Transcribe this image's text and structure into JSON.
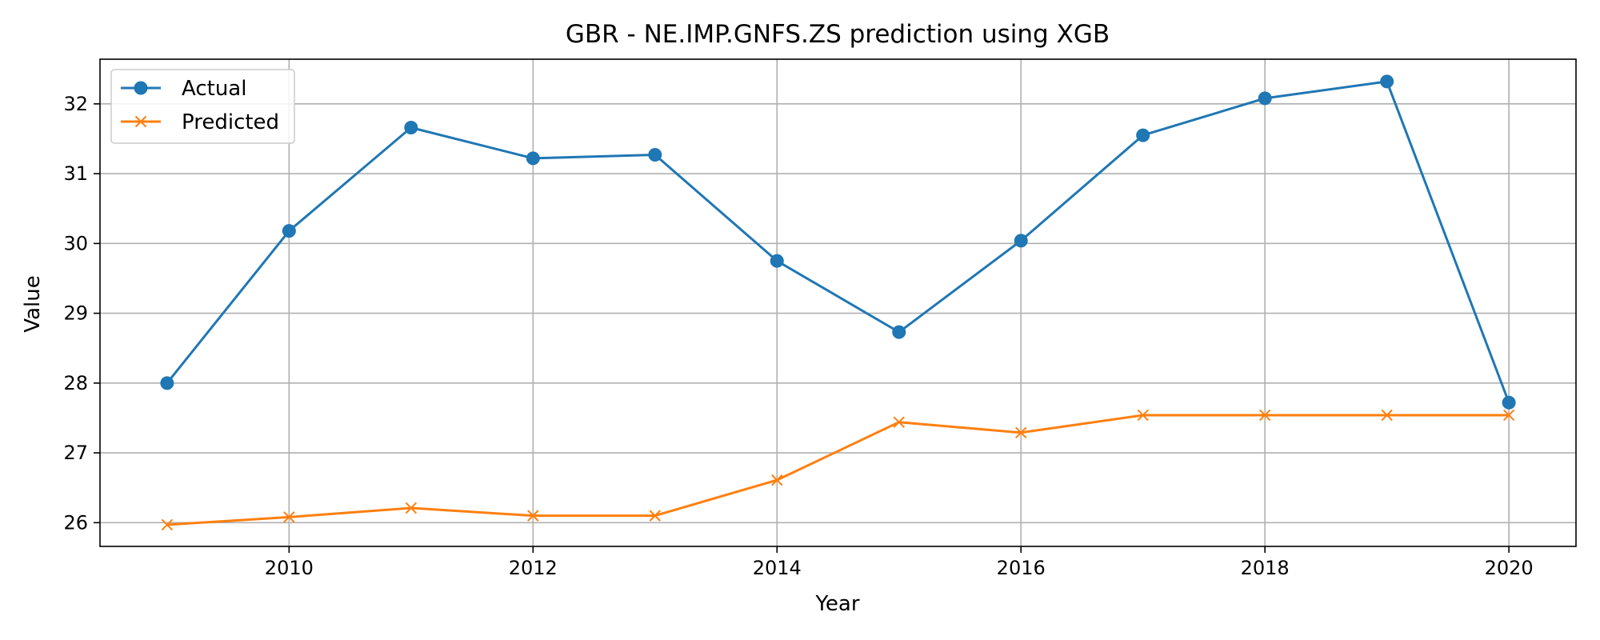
{
  "chart_data": {
    "type": "line",
    "title": "GBR - NE.IMP.GNFS.ZS prediction using XGB",
    "xlabel": "Year",
    "ylabel": "Value",
    "x": [
      2009,
      2010,
      2011,
      2012,
      2013,
      2014,
      2015,
      2016,
      2017,
      2018,
      2019,
      2020
    ],
    "xlim": [
      2008.45,
      2020.55
    ],
    "ylim": [
      25.66,
      32.64
    ],
    "xticks": [
      2010,
      2012,
      2014,
      2016,
      2018,
      2020
    ],
    "yticks": [
      26,
      27,
      28,
      29,
      30,
      31,
      32
    ],
    "grid": true,
    "legend_position": "upper-left",
    "series": [
      {
        "name": "Actual",
        "color": "#1f77b4",
        "marker": "circle",
        "values": [
          28.0,
          30.18,
          31.66,
          31.22,
          31.27,
          29.75,
          28.73,
          30.04,
          31.55,
          32.08,
          32.32,
          27.72
        ]
      },
      {
        "name": "Predicted",
        "color": "#ff7f0e",
        "marker": "x",
        "values": [
          25.97,
          26.08,
          26.21,
          26.1,
          26.1,
          26.61,
          27.44,
          27.29,
          27.54,
          27.54,
          27.54,
          27.54
        ]
      }
    ]
  }
}
